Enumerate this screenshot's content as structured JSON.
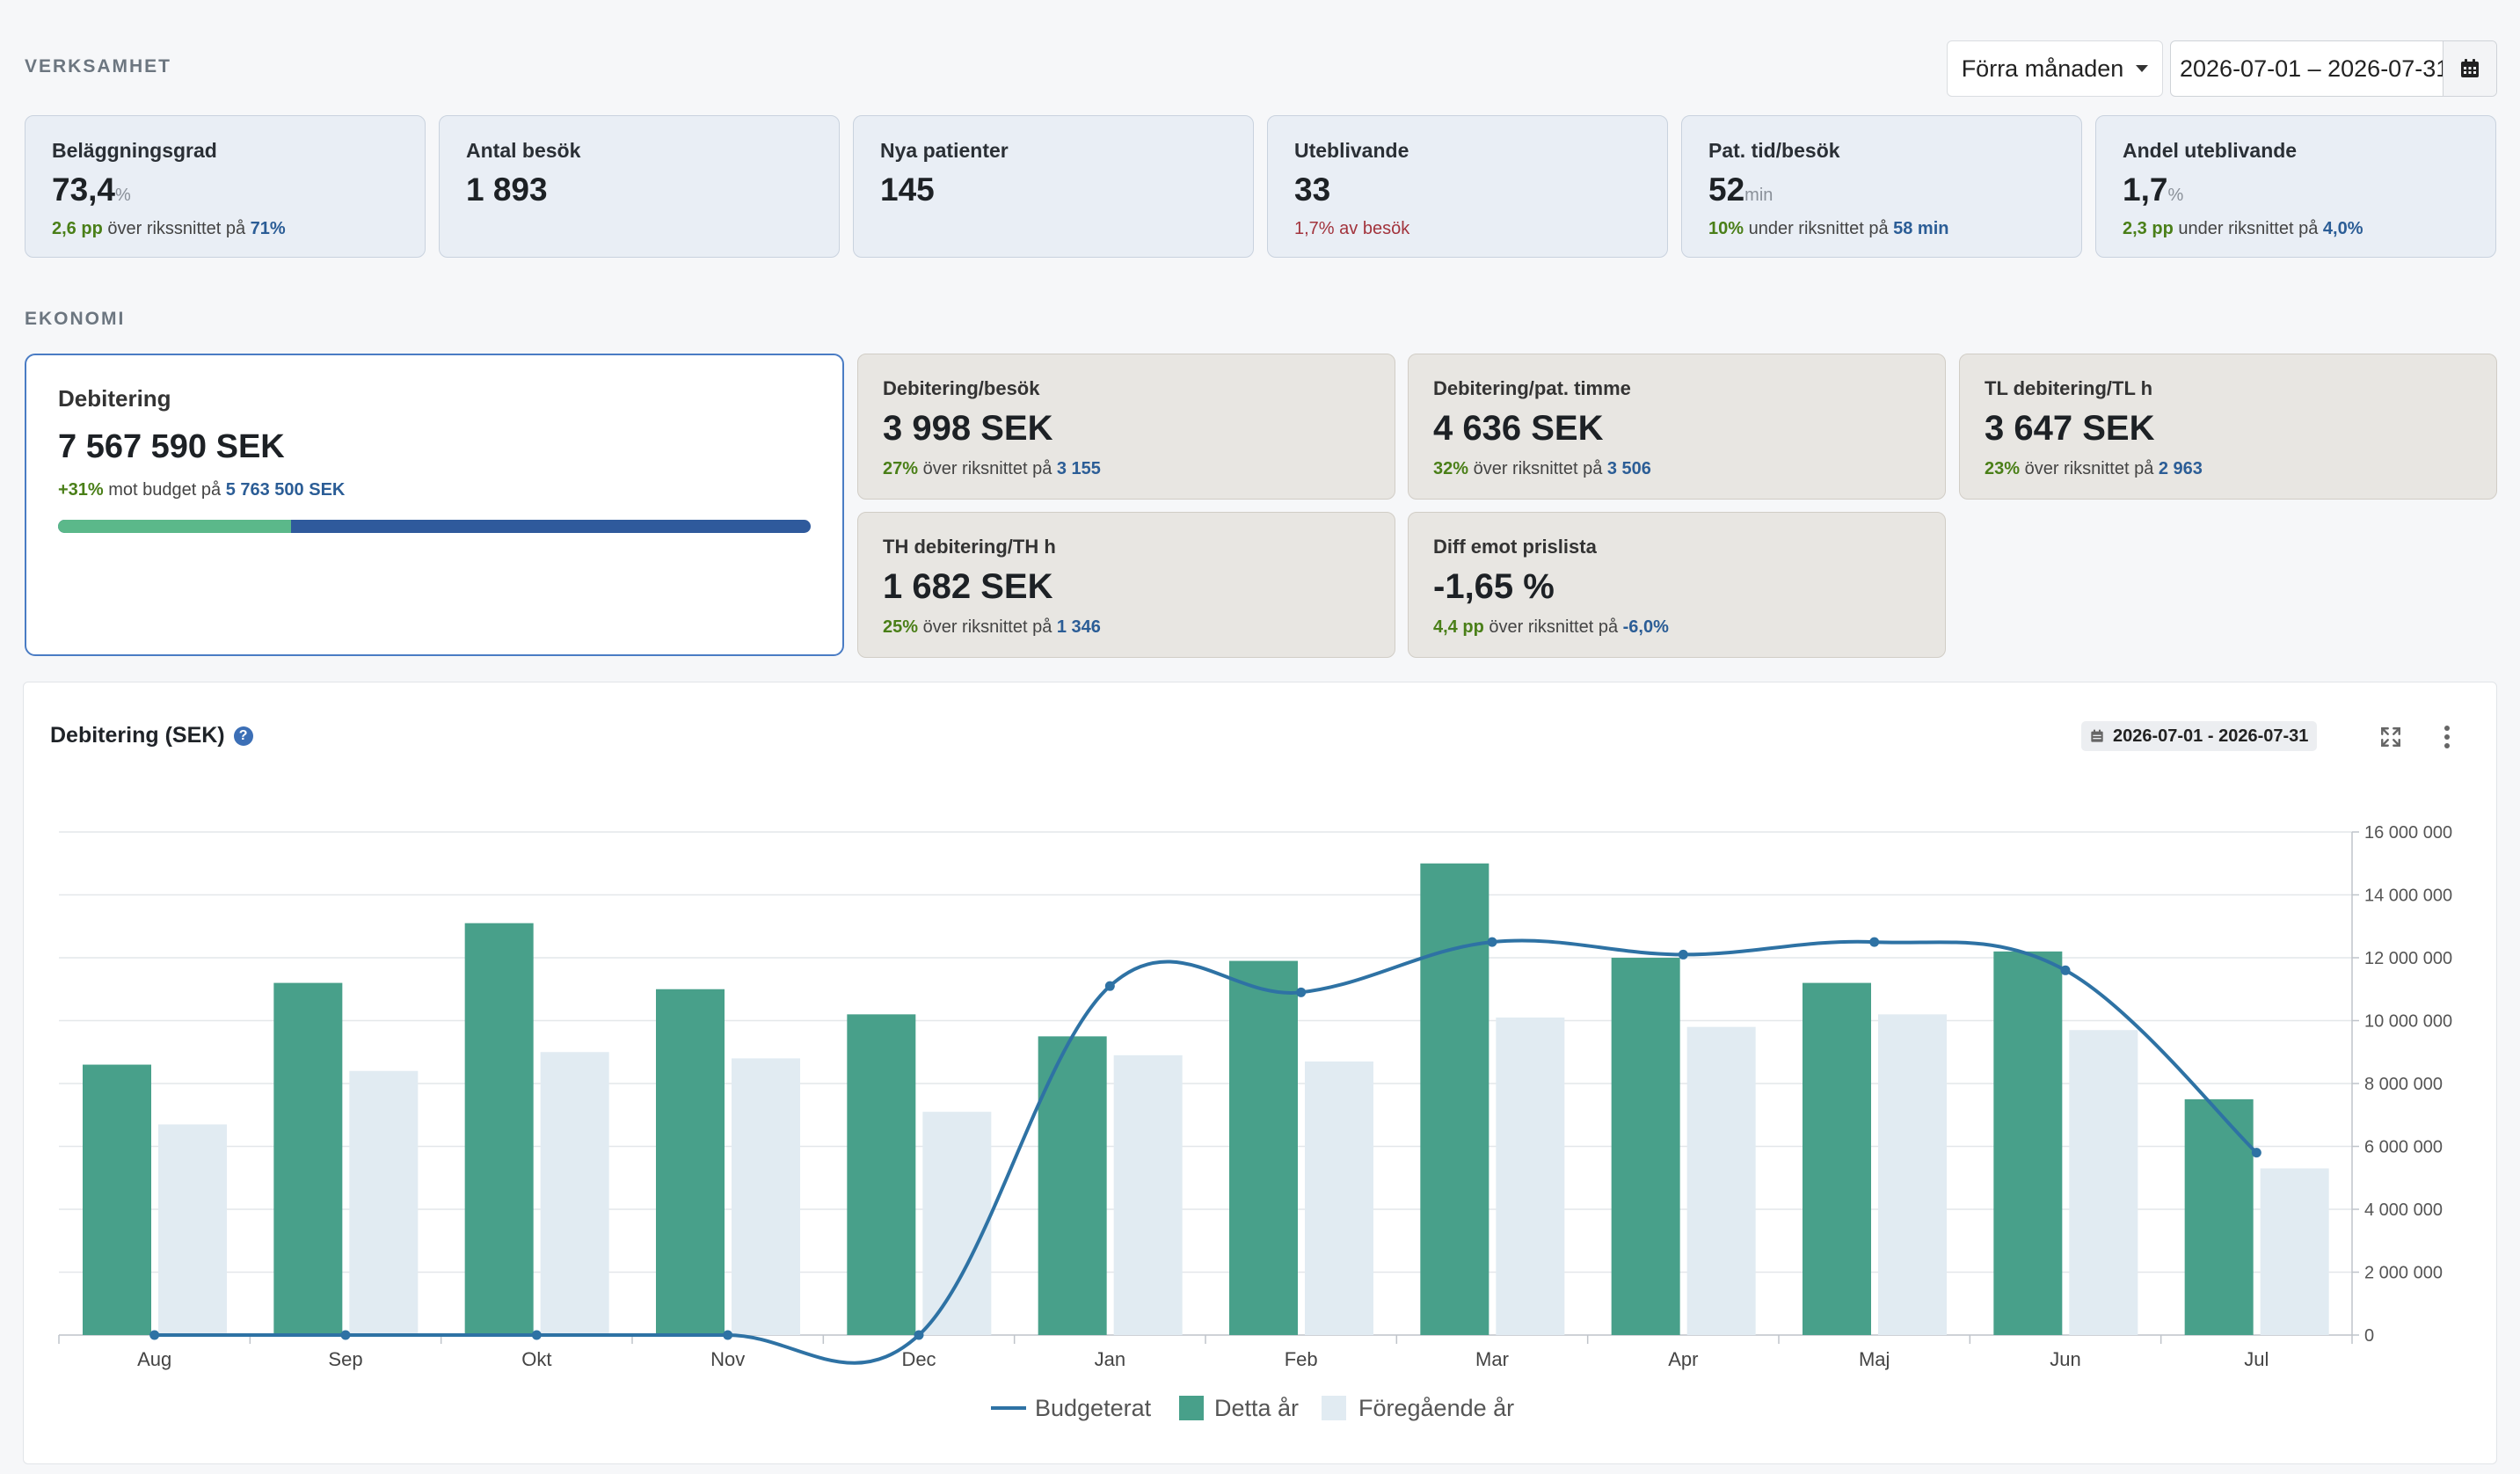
{
  "verksamhet": {
    "title": "VERKSAMHET",
    "period_select": "Förra månaden",
    "date_range": "2026-07-01 – 2026-07-31",
    "kpis": [
      {
        "label": "Beläggningsgrad",
        "value": "73,4",
        "unit": "%",
        "sub_highlight": "2,6 pp",
        "sub_text": " över rikssnittet på ",
        "sub_ref": "71%",
        "tone": "pos"
      },
      {
        "label": "Antal besök",
        "value": "1 893",
        "unit": "",
        "sub_highlight": "",
        "sub_text": "",
        "sub_ref": "",
        "tone": "pos"
      },
      {
        "label": "Nya patienter",
        "value": "145",
        "unit": "",
        "sub_highlight": "",
        "sub_text": "",
        "sub_ref": "",
        "tone": "pos"
      },
      {
        "label": "Uteblivande",
        "value": "33",
        "unit": "",
        "sub_highlight": "1,7% av besök",
        "sub_text": "",
        "sub_ref": "",
        "tone": "neg"
      },
      {
        "label": "Pat. tid/besök",
        "value": "52",
        "unit": "min",
        "sub_highlight": "10%",
        "sub_text": " under riksnittet på ",
        "sub_ref": "58 min",
        "tone": "pos"
      },
      {
        "label": "Andel uteblivande",
        "value": "1,7",
        "unit": "%",
        "sub_highlight": "2,3 pp",
        "sub_text": " under riksnittet på ",
        "sub_ref": "4,0%",
        "tone": "pos"
      }
    ]
  },
  "ekonomi": {
    "title": "EKONOMI",
    "main": {
      "label": "Debitering",
      "value": "7 567 590 SEK",
      "sub_highlight": "+31%",
      "sub_text": " mot budget på ",
      "sub_ref": "5 763 500 SEK",
      "progress_fraction": 0.31
    },
    "cards": [
      {
        "label": "Debitering/besök",
        "value": "3 998 SEK",
        "sub_highlight": "27%",
        "sub_text": " över riksnittet på ",
        "sub_ref": "3 155"
      },
      {
        "label": "Debitering/pat. timme",
        "value": "4 636 SEK",
        "sub_highlight": "32%",
        "sub_text": " över riksnittet på ",
        "sub_ref": "3 506"
      },
      {
        "label": "TL debitering/TL h",
        "value": "3 647 SEK",
        "sub_highlight": "23%",
        "sub_text": " över riksnittet på ",
        "sub_ref": "2 963"
      },
      {
        "label": "TH debitering/TH h",
        "value": "1 682 SEK",
        "sub_highlight": "25%",
        "sub_text": " över riksnittet på ",
        "sub_ref": "1 346"
      },
      {
        "label": "Diff emot prislista",
        "value": "-1,65 %",
        "sub_highlight": "4,4 pp",
        "sub_text": " över riksnittet på ",
        "sub_ref": "-6,0%"
      }
    ]
  },
  "chart_panel": {
    "title": "Debitering (SEK)",
    "help": "?",
    "date_range": "2026-07-01 - 2026-07-31"
  },
  "icons": {
    "caret": "chevron-down-icon",
    "calendar": "calendar-icon",
    "help": "help-icon",
    "expand": "expand-icon",
    "more": "more-vertical-icon"
  },
  "colors": {
    "this_year": "#48a08a",
    "previous_year": "#e1ebf2",
    "budget": "#2e72a4",
    "progress_done": "#5bb88a",
    "progress_rest": "#2f5a9c",
    "accent_border": "#4a7cc4"
  },
  "chart_data": {
    "type": "bar",
    "categories": [
      "Aug",
      "Sep",
      "Okt",
      "Nov",
      "Dec",
      "Jan",
      "Feb",
      "Mar",
      "Apr",
      "Maj",
      "Jun",
      "Jul"
    ],
    "series": [
      {
        "name": "Detta år",
        "type": "bar",
        "values": [
          8600000,
          11200000,
          13100000,
          11000000,
          10200000,
          9500000,
          11900000,
          15000000,
          12000000,
          11200000,
          12200000,
          7500000
        ]
      },
      {
        "name": "Föregående år",
        "type": "bar",
        "values": [
          6700000,
          8400000,
          9000000,
          8800000,
          7100000,
          8900000,
          8700000,
          10100000,
          9800000,
          10200000,
          9700000,
          5300000
        ]
      },
      {
        "name": "Budgeterat",
        "type": "line",
        "values": [
          0,
          0,
          0,
          0,
          0,
          11100000,
          10900000,
          12500000,
          12100000,
          12500000,
          11600000,
          5800000
        ]
      }
    ],
    "ylim": [
      0,
      16000000
    ],
    "yticks": [
      "0",
      "2 000 000",
      "4 000 000",
      "6 000 000",
      "8 000 000",
      "10 000 000",
      "12 000 000",
      "14 000 000",
      "16 000 000"
    ],
    "grid": true,
    "legend_position": "bottom",
    "y_axis_side": "right"
  }
}
